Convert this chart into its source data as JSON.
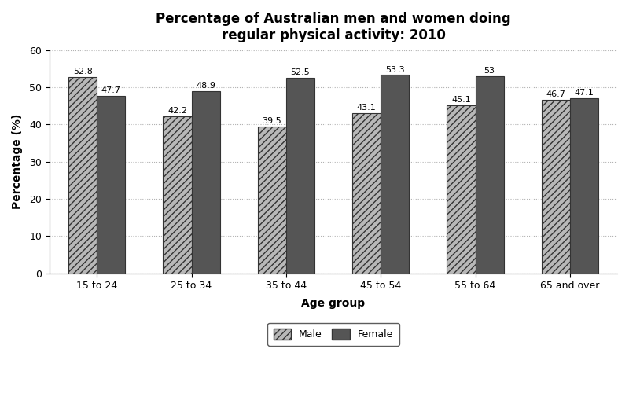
{
  "title": "Percentage of Australian men and women doing\nregular physical activity: 2010",
  "categories": [
    "15 to 24",
    "25 to 34",
    "35 to 44",
    "45 to 54",
    "55 to 64",
    "65 and over"
  ],
  "male_values": [
    52.8,
    42.2,
    39.5,
    43.1,
    45.1,
    46.7
  ],
  "female_values": [
    47.7,
    48.9,
    52.5,
    53.3,
    53.0,
    47.1
  ],
  "xlabel": "Age group",
  "ylabel": "Percentage (%)",
  "ylim": [
    0,
    60
  ],
  "yticks": [
    0,
    10,
    20,
    30,
    40,
    50,
    60
  ],
  "male_color": "#b8b8b8",
  "female_color": "#555555",
  "male_hatch": "////",
  "female_hatch": "",
  "bar_width": 0.3,
  "title_fontsize": 12,
  "axis_label_fontsize": 10,
  "tick_fontsize": 9,
  "value_fontsize": 8,
  "legend_fontsize": 9,
  "background_color": "#ffffff",
  "grid_color": "#aaaaaa",
  "grid_linestyle": ":",
  "grid_alpha": 0.9
}
